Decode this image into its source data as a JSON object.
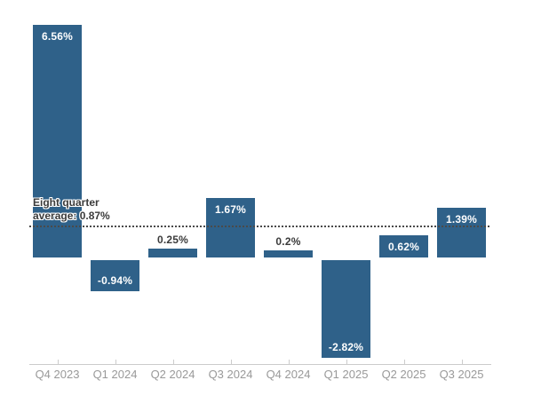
{
  "chart_data": {
    "type": "bar",
    "title": "",
    "xlabel": "",
    "ylabel": "",
    "categories": [
      "Q4 2023",
      "Q1 2024",
      "Q2 2024",
      "Q3 2024",
      "Q4 2024",
      "Q1 2025",
      "Q2 2025",
      "Q3 2025"
    ],
    "values": [
      6.56,
      -0.94,
      0.25,
      1.67,
      0.2,
      -2.82,
      0.62,
      1.39
    ],
    "value_labels": [
      "6.56%",
      "-0.94%",
      "0.25%",
      "1.67%",
      "0.2%",
      "-2.82%",
      "0.62%",
      "1.39%"
    ],
    "ylim": [
      -3.2,
      6.8
    ],
    "grid": false,
    "legend": false,
    "average_line": {
      "value": 0.87,
      "label_line1": "Eight quarter",
      "label_line2": "average: 0.87%"
    },
    "colors": {
      "bar": "#2f6189",
      "value_label_inside": "#ffffff",
      "value_label_outside": "#3b3b3b",
      "average_line": "#4a4a4a",
      "average_label": "#3b3b3b",
      "axis_line": "#cccccc",
      "axis_label": "#999999",
      "background": "#ffffff"
    }
  }
}
